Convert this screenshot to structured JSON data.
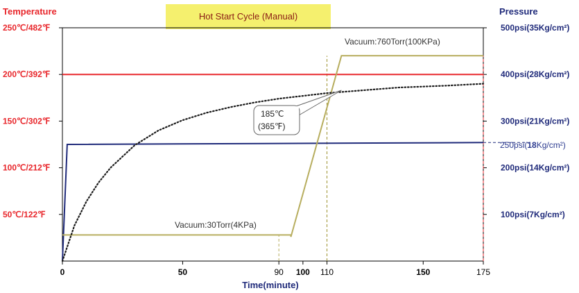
{
  "chart_data": {
    "type": "line",
    "title": "Hot Start Cycle (Manual)",
    "xlabel": "Time(minute)",
    "xlim": [
      0,
      175
    ],
    "x_ticks": [
      {
        "v": 0,
        "label": "0",
        "bold": true
      },
      {
        "v": 50,
        "label": "50",
        "bold": true
      },
      {
        "v": 90,
        "label": "90",
        "bold": false
      },
      {
        "v": 100,
        "label": "100",
        "bold": true
      },
      {
        "v": 110,
        "label": "110",
        "bold": false
      },
      {
        "v": 150,
        "label": "150",
        "bold": true
      },
      {
        "v": 175,
        "label": "175",
        "bold": false
      }
    ],
    "left_axis": {
      "title": "Temperature",
      "unit": "°C",
      "range": [
        0,
        250
      ],
      "ticks": [
        {
          "v": 250,
          "label": "250℃/482℉"
        },
        {
          "v": 200,
          "label": "200℃/392℉"
        },
        {
          "v": 150,
          "label": "150℃/302℉"
        },
        {
          "v": 100,
          "label": "100℃/212℉"
        },
        {
          "v": 50,
          "label": "50℃/122℉"
        }
      ]
    },
    "right_axis": {
      "title": "Pressure",
      "unit": "psi",
      "range": [
        0,
        500
      ],
      "ticks": [
        {
          "v": 500,
          "label": "500psi(35Kg/cm²)"
        },
        {
          "v": 400,
          "label": "400psi(28Kg/cm²)"
        },
        {
          "v": 300,
          "label": "300psi(21Kg/cm²)"
        },
        {
          "v": 200,
          "label": "200psi(14Kg/cm²)"
        },
        {
          "v": 100,
          "label": "100psi(7Kg/cm²)"
        }
      ]
    },
    "series": [
      {
        "name": "temperature-setpoint",
        "axis": "left",
        "color": "#e8262b",
        "style": "solid",
        "x": [
          0,
          175
        ],
        "y": [
          200,
          200
        ]
      },
      {
        "name": "pressure",
        "axis": "right",
        "color": "#1f2a7a",
        "style": "solid",
        "x": [
          0,
          2,
          175
        ],
        "y": [
          0,
          250,
          254
        ]
      },
      {
        "name": "vacuum",
        "axis": "left",
        "color": "#b7ad5e",
        "style": "solid",
        "x": [
          0,
          95,
          95,
          116,
          175
        ],
        "y": [
          28,
          28,
          26,
          220,
          220
        ]
      },
      {
        "name": "actual-temperature",
        "axis": "left",
        "color": "#1a1a1a",
        "style": "dotted",
        "x": [
          0,
          5,
          10,
          15,
          20,
          30,
          40,
          50,
          60,
          70,
          80,
          90,
          100,
          110,
          120,
          130,
          140,
          150,
          160,
          175
        ],
        "y": [
          0,
          38,
          64,
          84,
          100,
          124,
          140,
          151,
          159,
          165,
          170,
          174,
          177,
          180,
          182,
          184,
          186,
          187,
          188,
          190
        ]
      }
    ],
    "reference_lines": [
      {
        "x": 90,
        "from": 0,
        "to": 28,
        "axis": "left",
        "color": "#b7ad5e"
      },
      {
        "x": 110,
        "from": 0,
        "to": 220,
        "axis": "left",
        "color": "#9a8f2a"
      },
      {
        "x": 175,
        "from": 0,
        "to": 220,
        "axis": "left",
        "color": "#e8262b"
      },
      {
        "y": 254,
        "from": 175,
        "to": 186,
        "axis": "right",
        "color": "#1f2a7a"
      }
    ],
    "annotations": {
      "vacuum_high": "Vacuum:760Torr(100KPa)",
      "vacuum_low": "Vacuum:30Torr(4KPa)",
      "callout_line1": "185℃",
      "callout_line2": "(365℉)",
      "callout_target": {
        "x": 116,
        "y": 183
      },
      "pressure_value_prefix": "250psi(",
      "pressure_value_bold": "18",
      "pressure_value_suffix": "Kg/cm²)"
    },
    "colors": {
      "temperature": "#e8262b",
      "pressure": "#1f2a7a",
      "title_bg": "#f5f06e",
      "title_text": "#8a1a14"
    }
  }
}
